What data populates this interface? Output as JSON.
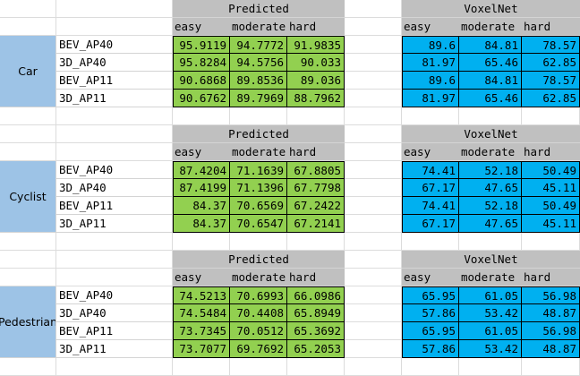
{
  "groups": [
    {
      "label": "Car",
      "predicted_title": "Predicted",
      "voxel_title": "VoxelNet",
      "cols": [
        "easy",
        "moderate",
        "hard"
      ],
      "rows": [
        {
          "name": "BEV_AP40",
          "pred": [
            "95.9119",
            "94.7772",
            "91.9835"
          ],
          "voxel": [
            "89.6",
            "84.81",
            "78.57"
          ]
        },
        {
          "name": "3D_AP40",
          "pred": [
            "95.8284",
            "94.5756",
            "90.033"
          ],
          "voxel": [
            "81.97",
            "65.46",
            "62.85"
          ]
        },
        {
          "name": "BEV_AP11",
          "pred": [
            "90.6868",
            "89.8536",
            "89.036"
          ],
          "voxel": [
            "89.6",
            "84.81",
            "78.57"
          ]
        },
        {
          "name": "3D_AP11",
          "pred": [
            "90.6762",
            "89.7969",
            "88.7962"
          ],
          "voxel": [
            "81.97",
            "65.46",
            "62.85"
          ]
        }
      ]
    },
    {
      "label": "Cyclist",
      "predicted_title": "Predicted",
      "voxel_title": "VoxelNet",
      "cols": [
        "easy",
        "moderate",
        "hard"
      ],
      "rows": [
        {
          "name": "BEV_AP40",
          "pred": [
            "87.4204",
            "71.1639",
            "67.8805"
          ],
          "voxel": [
            "74.41",
            "52.18",
            "50.49"
          ]
        },
        {
          "name": "3D_AP40",
          "pred": [
            "87.4199",
            "71.1396",
            "67.7798"
          ],
          "voxel": [
            "67.17",
            "47.65",
            "45.11"
          ]
        },
        {
          "name": "BEV_AP11",
          "pred": [
            "84.37",
            "70.6569",
            "67.2422"
          ],
          "voxel": [
            "74.41",
            "52.18",
            "50.49"
          ]
        },
        {
          "name": "3D_AP11",
          "pred": [
            "84.37",
            "70.6547",
            "67.2141"
          ],
          "voxel": [
            "67.17",
            "47.65",
            "45.11"
          ]
        }
      ]
    },
    {
      "label": "Pedestrian",
      "predicted_title": "Predicted",
      "voxel_title": "VoxelNet",
      "cols": [
        "easy",
        "moderate",
        "hard"
      ],
      "rows": [
        {
          "name": "BEV_AP40",
          "pred": [
            "74.5213",
            "70.6993",
            "66.0986"
          ],
          "voxel": [
            "65.95",
            "61.05",
            "56.98"
          ]
        },
        {
          "name": "3D_AP40",
          "pred": [
            "74.5484",
            "70.4408",
            "65.8949"
          ],
          "voxel": [
            "57.86",
            "53.42",
            "48.87"
          ]
        },
        {
          "name": "BEV_AP11",
          "pred": [
            "73.7345",
            "70.0512",
            "65.3692"
          ],
          "voxel": [
            "65.95",
            "61.05",
            "56.98"
          ]
        },
        {
          "name": "3D_AP11",
          "pred": [
            "73.7077",
            "69.7692",
            "65.2053"
          ],
          "voxel": [
            "57.86",
            "53.42",
            "48.87"
          ]
        }
      ]
    }
  ],
  "colors": {
    "header_gray": "#c0c0c0",
    "predicted_green": "#92d050",
    "voxelnet_blue": "#00b0f0",
    "label_blue": "#9dc3e6"
  }
}
